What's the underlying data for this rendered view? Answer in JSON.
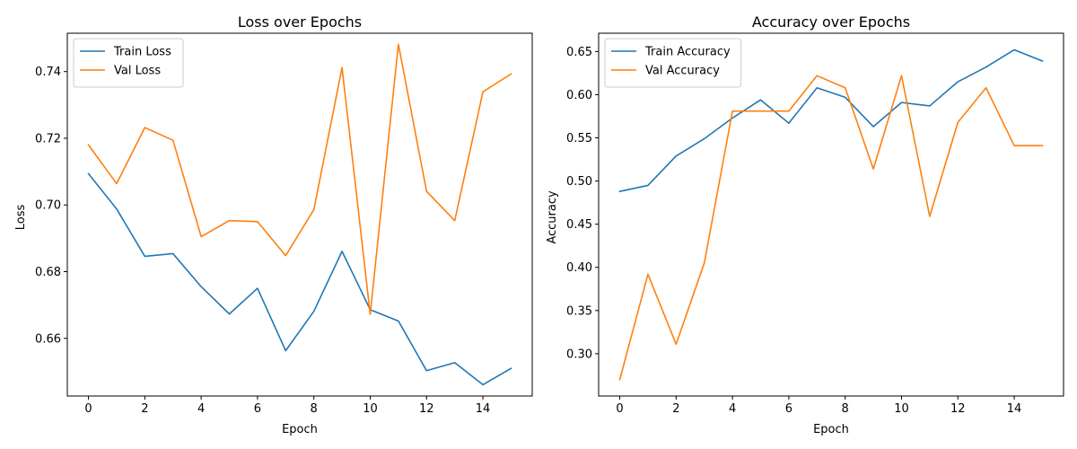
{
  "chart_data": [
    {
      "type": "line",
      "title": "Loss over Epochs",
      "xlabel": "Epoch",
      "ylabel": "Loss",
      "xlim": [
        -0.75,
        15.75
      ],
      "ylim": [
        0.6427,
        0.7515
      ],
      "xticks": [
        0,
        2,
        4,
        6,
        8,
        10,
        12,
        14
      ],
      "yticks": [
        0.66,
        0.68,
        0.7,
        0.72,
        0.74
      ],
      "ytick_decimals": 2,
      "legend_position": "upper-left",
      "grid": false,
      "x": [
        0,
        1,
        2,
        3,
        4,
        5,
        6,
        7,
        8,
        9,
        10,
        11,
        12,
        13,
        14,
        15
      ],
      "series": [
        {
          "name": "Train Loss",
          "color": "#1f77b4",
          "values": [
            0.7094,
            0.6988,
            0.6846,
            0.6854,
            0.6755,
            0.6673,
            0.675,
            0.6563,
            0.6681,
            0.6861,
            0.6686,
            0.6652,
            0.6503,
            0.6527,
            0.6461,
            0.651
          ]
        },
        {
          "name": "Val Loss",
          "color": "#ff7f0e",
          "values": [
            0.718,
            0.7064,
            0.7232,
            0.7194,
            0.6905,
            0.6953,
            0.695,
            0.6848,
            0.6986,
            0.7412,
            0.6672,
            0.7482,
            0.7041,
            0.6953,
            0.7339,
            0.7393
          ]
        }
      ]
    },
    {
      "type": "line",
      "title": "Accuracy over Epochs",
      "xlabel": "Epoch",
      "ylabel": "Accuracy",
      "xlim": [
        -0.75,
        15.75
      ],
      "ylim": [
        0.251,
        0.6712
      ],
      "xticks": [
        0,
        2,
        4,
        6,
        8,
        10,
        12,
        14
      ],
      "yticks": [
        0.3,
        0.35,
        0.4,
        0.45,
        0.5,
        0.55,
        0.6,
        0.65
      ],
      "ytick_decimals": 2,
      "legend_position": "upper-left",
      "grid": false,
      "x": [
        0,
        1,
        2,
        3,
        4,
        5,
        6,
        7,
        8,
        9,
        10,
        11,
        12,
        13,
        14,
        15
      ],
      "series": [
        {
          "name": "Train Accuracy",
          "color": "#1f77b4",
          "values": [
            0.488,
            0.495,
            0.529,
            0.549,
            0.573,
            0.594,
            0.567,
            0.608,
            0.597,
            0.563,
            0.591,
            0.587,
            0.615,
            0.632,
            0.652,
            0.639
          ]
        },
        {
          "name": "Val Accuracy",
          "color": "#ff7f0e",
          "values": [
            0.27,
            0.392,
            0.311,
            0.405,
            0.581,
            0.581,
            0.581,
            0.622,
            0.608,
            0.514,
            0.622,
            0.459,
            0.568,
            0.608,
            0.541,
            0.541
          ]
        }
      ]
    }
  ]
}
